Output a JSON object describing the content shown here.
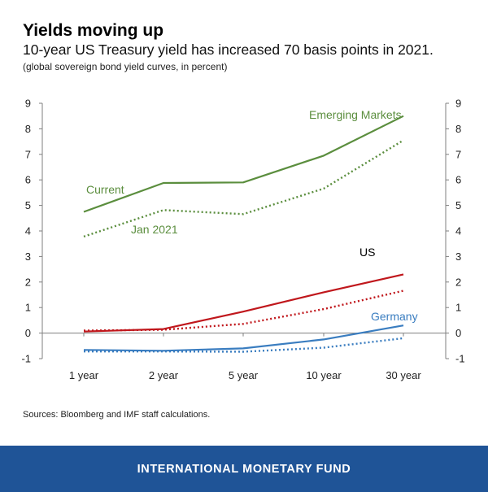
{
  "header": {
    "title": "Yields moving up",
    "subtitle": "10-year US Treasury yield has increased 70 basis points in 2021.",
    "note": "(global sovereign bond yield curves, in percent)"
  },
  "source": "Sources: Bloomberg and IMF staff calculations.",
  "footer": {
    "label": "INTERNATIONAL MONETARY FUND",
    "color": "#1f5497"
  },
  "chart_data": {
    "type": "line",
    "categories": [
      "1 year",
      "2 year",
      "5 year",
      "10 year",
      "30 year"
    ],
    "ylim": [
      -1,
      9
    ],
    "yticks": [
      -1,
      0,
      1,
      2,
      3,
      4,
      5,
      6,
      7,
      8,
      9
    ],
    "dual_y_axis": true,
    "grid": false,
    "series": [
      {
        "group": "Emerging Markets",
        "period": "Current",
        "style": "solid",
        "color": "#5b8e3e",
        "values": [
          4.75,
          5.88,
          5.9,
          6.95,
          8.5
        ]
      },
      {
        "group": "Emerging Markets",
        "period": "Jan 2021",
        "style": "dotted",
        "color": "#5b8e3e",
        "values": [
          3.78,
          4.82,
          4.66,
          5.66,
          7.55
        ]
      },
      {
        "group": "US",
        "period": "Current",
        "style": "solid",
        "color": "#c0171c",
        "values": [
          0.06,
          0.16,
          0.84,
          1.6,
          2.3
        ]
      },
      {
        "group": "US",
        "period": "Jan 2021",
        "style": "dotted",
        "color": "#c0171c",
        "values": [
          0.1,
          0.13,
          0.36,
          0.94,
          1.66
        ]
      },
      {
        "group": "Germany",
        "period": "Current",
        "style": "solid",
        "color": "#3a7dc0",
        "values": [
          -0.66,
          -0.69,
          -0.6,
          -0.25,
          0.3
        ]
      },
      {
        "group": "Germany",
        "period": "Jan 2021",
        "style": "dotted",
        "color": "#3a7dc0",
        "values": [
          -0.72,
          -0.72,
          -0.73,
          -0.57,
          -0.2
        ]
      }
    ],
    "annotations": [
      {
        "text": "Emerging Markets",
        "color": "#5b8e3e"
      },
      {
        "text": "Current",
        "color": "#5b8e3e"
      },
      {
        "text": "Jan 2021",
        "color": "#5b8e3e"
      },
      {
        "text": "US",
        "color": "#000000"
      },
      {
        "text": "Germany",
        "color": "#3a7dc0"
      }
    ]
  }
}
